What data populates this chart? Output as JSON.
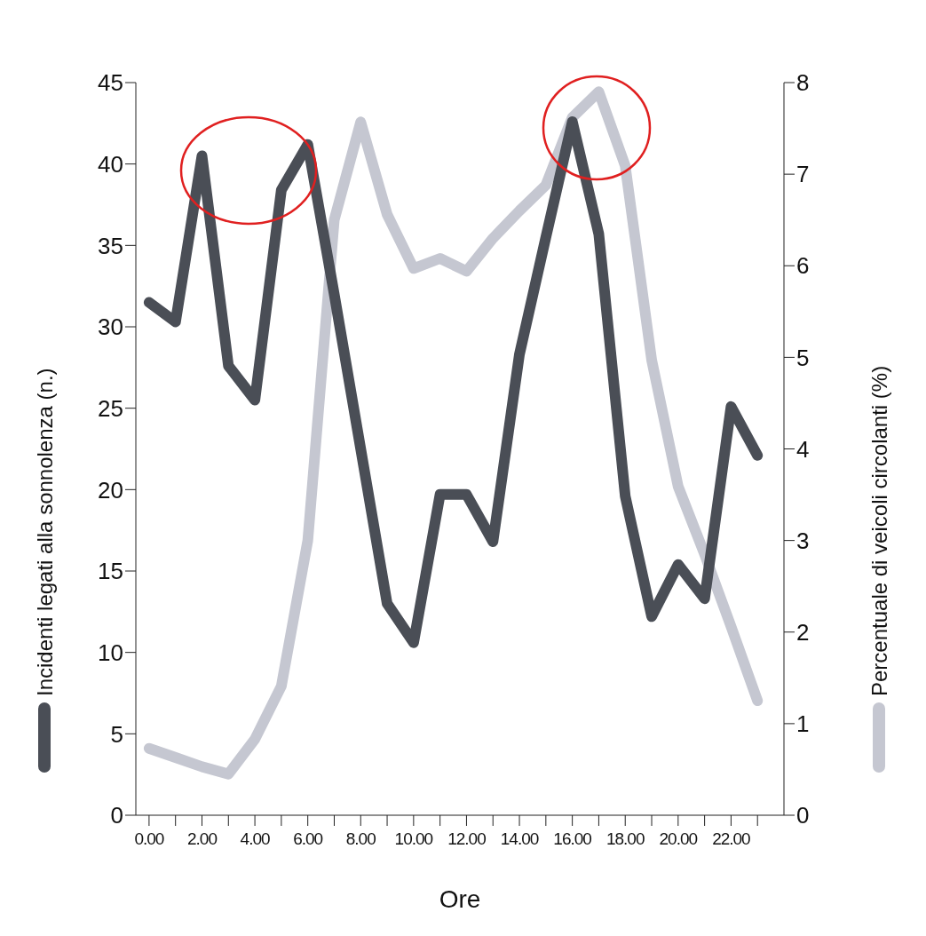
{
  "chart_data": {
    "type": "line",
    "xlabel": "Ore",
    "ylabel": "Incidenti legati alla sonnolenza (n.)",
    "y2label": "Percentuale di veicoli circolanti (%)",
    "x": [
      0,
      1,
      2,
      3,
      4,
      5,
      6,
      7,
      8,
      9,
      10,
      11,
      12,
      13,
      14,
      15,
      16,
      17,
      18,
      19,
      20,
      21,
      22,
      23
    ],
    "series": [
      {
        "color": "#4a4e56",
        "axis": "y",
        "values": [
          31.5,
          30.3,
          40.5,
          27.6,
          25.5,
          38.4,
          41.2,
          32,
          22.5,
          13.0,
          10.6,
          19.7,
          19.7,
          16.8,
          28.3,
          35.5,
          42.6,
          35.7,
          19.6,
          12.2,
          15.4,
          13.3,
          25.1,
          22.1
        ]
      },
      {
        "color": "#c5c7d1",
        "axis": "y2",
        "values": [
          0.73,
          0.63,
          0.53,
          0.45,
          0.83,
          1.41,
          3.0,
          6.5,
          7.57,
          6.56,
          5.97,
          6.08,
          5.94,
          6.3,
          6.6,
          6.88,
          7.62,
          7.9,
          7.09,
          4.97,
          3.59,
          2.85,
          2.06,
          1.25
        ]
      }
    ],
    "xlim": [
      -0.5,
      24
    ],
    "xticks": [
      {
        "value": 0,
        "label": "0.00"
      },
      {
        "value": 1,
        "label": null
      },
      {
        "value": 2,
        "label": "2.00"
      },
      {
        "value": 3,
        "label": null
      },
      {
        "value": 4,
        "label": "4.00"
      },
      {
        "value": 5,
        "label": null
      },
      {
        "value": 6,
        "label": "6.00"
      },
      {
        "value": 7,
        "label": null
      },
      {
        "value": 8,
        "label": "8.00"
      },
      {
        "value": 9,
        "label": null
      },
      {
        "value": 10,
        "label": "10.00"
      },
      {
        "value": 11,
        "label": null
      },
      {
        "value": 12,
        "label": "12.00"
      },
      {
        "value": 13,
        "label": null
      },
      {
        "value": 14,
        "label": "14.00"
      },
      {
        "value": 15,
        "label": null
      },
      {
        "value": 16,
        "label": "16.00"
      },
      {
        "value": 17,
        "label": null
      },
      {
        "value": 18,
        "label": "18.00"
      },
      {
        "value": 19,
        "label": null
      },
      {
        "value": 20,
        "label": "20.00"
      },
      {
        "value": 21,
        "label": null
      },
      {
        "value": 22,
        "label": "22.00"
      },
      {
        "value": 23,
        "label": null
      }
    ],
    "ylim": [
      0,
      45
    ],
    "yticks": [
      0,
      5,
      10,
      15,
      20,
      25,
      30,
      35,
      40,
      45
    ],
    "y2lim": [
      0,
      8
    ],
    "y2ticks": [
      0,
      1,
      2,
      3,
      4,
      5,
      6,
      7,
      8
    ],
    "grid": false,
    "marker": "none",
    "line_style": "solid"
  }
}
